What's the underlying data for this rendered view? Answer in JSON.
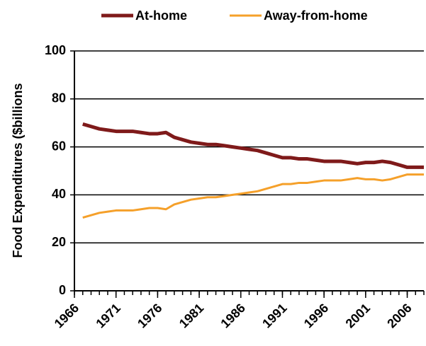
{
  "chart_data": {
    "type": "line",
    "ylabel": "Food Expenditures ($billions",
    "x": [
      1967,
      1968,
      1969,
      1970,
      1971,
      1972,
      1973,
      1974,
      1975,
      1976,
      1977,
      1978,
      1979,
      1980,
      1981,
      1982,
      1983,
      1984,
      1985,
      1986,
      1987,
      1988,
      1989,
      1990,
      1991,
      1992,
      1993,
      1994,
      1995,
      1996,
      1997,
      1998,
      1999,
      2000,
      2001,
      2002,
      2003,
      2004,
      2005,
      2006,
      2007,
      2008
    ],
    "series": [
      {
        "name": "At-home",
        "color": "#7f1a1a",
        "width": 5,
        "values": [
          69.5,
          68.5,
          67.5,
          67,
          66.5,
          66.5,
          66.5,
          66,
          65.5,
          65.5,
          66,
          64,
          63,
          62,
          61.5,
          61,
          61,
          60.5,
          60,
          59.5,
          59,
          58.5,
          57.5,
          56.5,
          55.5,
          55.5,
          55,
          55,
          54.5,
          54,
          54,
          54,
          53.5,
          53,
          53.5,
          53.5,
          54,
          53.5,
          52.5,
          51.5,
          51.5,
          51.5
        ]
      },
      {
        "name": "Away-from-home",
        "color": "#f5a02a",
        "width": 3,
        "values": [
          30.5,
          31.5,
          32.5,
          33,
          33.5,
          33.5,
          33.5,
          34,
          34.5,
          34.5,
          34,
          36,
          37,
          38,
          38.5,
          39,
          39,
          39.5,
          40,
          40.5,
          41,
          41.5,
          42.5,
          43.5,
          44.5,
          44.5,
          45,
          45,
          45.5,
          46,
          46,
          46,
          46.5,
          47,
          46.5,
          46.5,
          46,
          46.5,
          47.5,
          48.5,
          48.5,
          48.5
        ]
      }
    ],
    "xlim": [
      1966,
      2008
    ],
    "xticks": [
      1966,
      1971,
      1976,
      1981,
      1986,
      1991,
      1996,
      2001,
      2006
    ],
    "xminorticks": [
      1966,
      1967,
      1968,
      1969,
      1970,
      1971,
      1972,
      1973,
      1974,
      1975,
      1976,
      1977,
      1978,
      1979,
      1980,
      1981,
      1982,
      1983,
      1984,
      1985,
      1986,
      1987,
      1988,
      1989,
      1990,
      1991,
      1992,
      1993,
      1994,
      1995,
      1996,
      1997,
      1998,
      1999,
      2000,
      2001,
      2002,
      2003,
      2004,
      2005,
      2006,
      2007,
      2008
    ],
    "ylim": [
      0,
      100
    ],
    "yticks": [
      0,
      20,
      40,
      60,
      80,
      100
    ],
    "grid": true,
    "legend": "top"
  }
}
